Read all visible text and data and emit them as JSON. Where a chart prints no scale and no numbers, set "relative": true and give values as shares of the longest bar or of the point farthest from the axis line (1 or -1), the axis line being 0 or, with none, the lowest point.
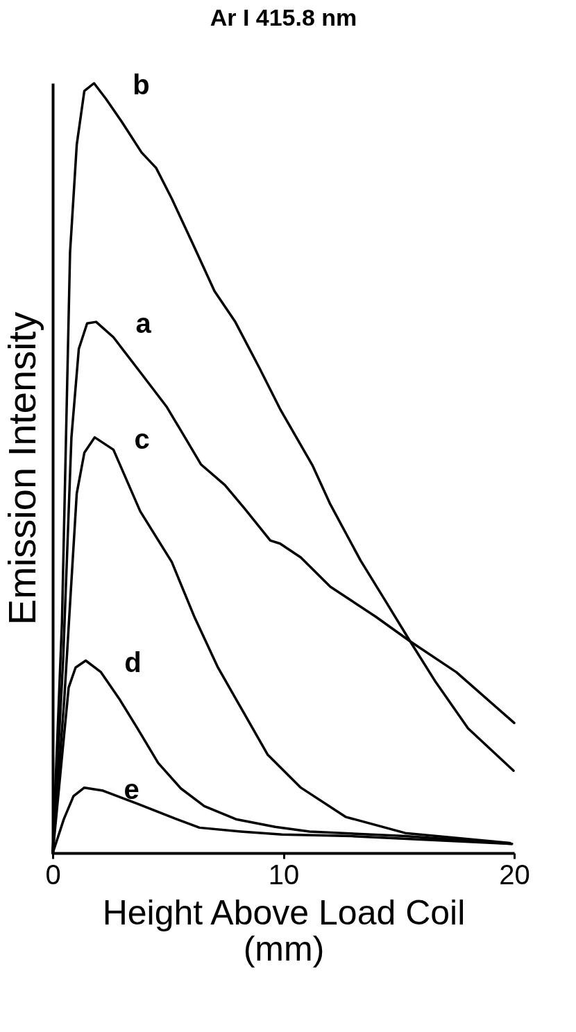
{
  "chart_data": {
    "type": "line",
    "title": "Ar I 415.8 nm",
    "xlabel": "Height Above Load Coil (mm)",
    "ylabel": "Emission Intensity",
    "relative": true,
    "xlim": [
      0,
      20
    ],
    "xticks": [
      0,
      10,
      20
    ],
    "grid": false,
    "legend": false,
    "series": [
      {
        "name": "b",
        "color": "#000000",
        "x": [
          0,
          0.4,
          0.75,
          1.04,
          1.37,
          1.79,
          2.3,
          2.99,
          3.85,
          4.48,
          5.16,
          6.09,
          7.01,
          7.91,
          8.96,
          9.85,
          11.25,
          12.03,
          13.34,
          14.39,
          15.49,
          16.6,
          18.0,
          19.97
        ],
        "values": [
          0,
          0.3,
          0.78,
          0.92,
          0.99,
          1.0,
          0.98,
          0.95,
          0.91,
          0.89,
          0.85,
          0.79,
          0.73,
          0.69,
          0.63,
          0.577,
          0.504,
          0.453,
          0.38,
          0.329,
          0.275,
          0.222,
          0.162,
          0.107
        ]
      },
      {
        "name": "a",
        "color": "#000000",
        "x": [
          0,
          0.45,
          0.81,
          1.13,
          1.49,
          1.88,
          2.63,
          3.91,
          4.93,
          5.73,
          6.42,
          7.46,
          8.3,
          9.43,
          9.85,
          10.75,
          12.03,
          14.0,
          15.49,
          17.49,
          20
        ],
        "values": [
          0,
          0.25,
          0.54,
          0.655,
          0.688,
          0.69,
          0.67,
          0.62,
          0.58,
          0.54,
          0.505,
          0.478,
          0.448,
          0.406,
          0.402,
          0.384,
          0.346,
          0.307,
          0.275,
          0.235,
          0.169
        ]
      },
      {
        "name": "c",
        "color": "#000000",
        "x": [
          0,
          0.5,
          1.04,
          1.37,
          1.82,
          2.63,
          3.79,
          5.16,
          6.15,
          7.16,
          8.15,
          9.31,
          10.75,
          12.69,
          15.28,
          19.82
        ],
        "values": [
          0,
          0.2,
          0.467,
          0.52,
          0.54,
          0.524,
          0.444,
          0.378,
          0.306,
          0.241,
          0.189,
          0.128,
          0.085,
          0.047,
          0.026,
          0.013
        ]
      },
      {
        "name": "d",
        "color": "#000000",
        "x": [
          0,
          0.69,
          0.99,
          1.43,
          2.09,
          2.87,
          3.67,
          4.57,
          5.55,
          6.57,
          7.94,
          9.64,
          11.13,
          15.28,
          19.9
        ],
        "values": [
          0,
          0.215,
          0.241,
          0.25,
          0.235,
          0.201,
          0.162,
          0.117,
          0.084,
          0.061,
          0.044,
          0.034,
          0.028,
          0.022,
          0.012
        ]
      },
      {
        "name": "e",
        "color": "#000000",
        "x": [
          0,
          0.48,
          0.9,
          1.37,
          2.18,
          3.67,
          5.37,
          6.36,
          8.15,
          9.94,
          12.96,
          19.9
        ],
        "values": [
          0,
          0.044,
          0.074,
          0.085,
          0.081,
          0.064,
          0.044,
          0.033,
          0.028,
          0.024,
          0.022,
          0.012
        ]
      }
    ]
  }
}
